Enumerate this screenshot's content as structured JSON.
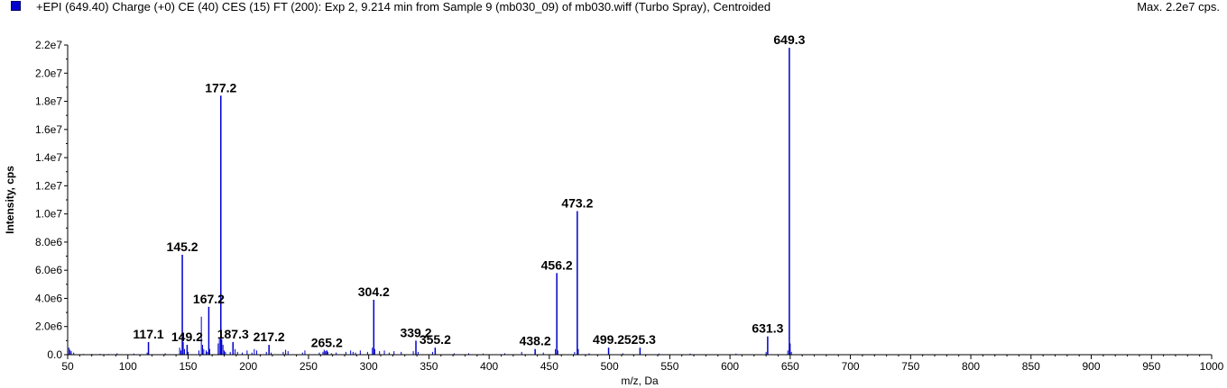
{
  "header": {
    "title": "+EPI (649.40) Charge (+0) CE (40) CES (15) FT (200): Exp 2, 9.214 min from Sample 9 (mb030_09) of mb030.wiff (Turbo Spray), Centroided",
    "max_intensity": "Max. 2.2e7 cps."
  },
  "colors": {
    "peak": "#0000cc",
    "swatch": "#0000cc",
    "axis": "#000000"
  },
  "chart_data": {
    "type": "bar",
    "xlabel": "m/z, Da",
    "ylabel": "Intensity, cps",
    "xlim": [
      50,
      1000
    ],
    "ylim": [
      0,
      22000000
    ],
    "x_ticks": [
      50,
      100,
      150,
      200,
      250,
      300,
      350,
      400,
      450,
      500,
      550,
      600,
      650,
      700,
      750,
      800,
      850,
      900,
      950,
      1000
    ],
    "y_ticks": [
      {
        "value": 0,
        "label": "0.0"
      },
      {
        "value": 2000000,
        "label": "2.0e6"
      },
      {
        "value": 4000000,
        "label": "4.0e6"
      },
      {
        "value": 6000000,
        "label": "6.0e6"
      },
      {
        "value": 8000000,
        "label": "8.0e6"
      },
      {
        "value": 10000000,
        "label": "1.0e7"
      },
      {
        "value": 12000000,
        "label": "1.2e7"
      },
      {
        "value": 14000000,
        "label": "1.4e7"
      },
      {
        "value": 16000000,
        "label": "1.6e7"
      },
      {
        "value": 18000000,
        "label": "1.8e7"
      },
      {
        "value": 20000000,
        "label": "2.0e7"
      },
      {
        "value": 22000000,
        "label": "2.2e7"
      }
    ],
    "labeled_peaks": [
      {
        "mz": 117.1,
        "intensity": 900000,
        "label": "117.1"
      },
      {
        "mz": 145.2,
        "intensity": 7100000,
        "label": "145.2"
      },
      {
        "mz": 149.2,
        "intensity": 700000,
        "label": "149.2"
      },
      {
        "mz": 167.2,
        "intensity": 3400000,
        "label": "167.2"
      },
      {
        "mz": 177.2,
        "intensity": 18400000,
        "label": "177.2"
      },
      {
        "mz": 187.3,
        "intensity": 900000,
        "label": "187.3"
      },
      {
        "mz": 217.2,
        "intensity": 700000,
        "label": "217.2"
      },
      {
        "mz": 265.2,
        "intensity": 300000,
        "label": "265.2"
      },
      {
        "mz": 304.2,
        "intensity": 3900000,
        "label": "304.2"
      },
      {
        "mz": 339.2,
        "intensity": 1000000,
        "label": "339.2"
      },
      {
        "mz": 355.2,
        "intensity": 500000,
        "label": "355.2"
      },
      {
        "mz": 438.2,
        "intensity": 400000,
        "label": "438.2"
      },
      {
        "mz": 456.2,
        "intensity": 5800000,
        "label": "456.2"
      },
      {
        "mz": 473.2,
        "intensity": 10200000,
        "label": "473.2"
      },
      {
        "mz": 499.2,
        "intensity": 500000,
        "label": "499.2"
      },
      {
        "mz": 525.3,
        "intensity": 500000,
        "label": "525.3"
      },
      {
        "mz": 631.3,
        "intensity": 1300000,
        "label": "631.3"
      },
      {
        "mz": 649.3,
        "intensity": 21800000,
        "label": "649.3"
      }
    ],
    "minor_peaks": [
      {
        "mz": 51,
        "intensity": 500000
      },
      {
        "mz": 52,
        "intensity": 350000
      },
      {
        "mz": 53,
        "intensity": 250000
      },
      {
        "mz": 55,
        "intensity": 150000
      },
      {
        "mz": 63,
        "intensity": 50000
      },
      {
        "mz": 70,
        "intensity": 50000
      },
      {
        "mz": 77,
        "intensity": 60000
      },
      {
        "mz": 84,
        "intensity": 50000
      },
      {
        "mz": 91,
        "intensity": 100000
      },
      {
        "mz": 105,
        "intensity": 80000
      },
      {
        "mz": 116,
        "intensity": 150000
      },
      {
        "mz": 131,
        "intensity": 100000
      },
      {
        "mz": 143,
        "intensity": 500000
      },
      {
        "mz": 144,
        "intensity": 300000
      },
      {
        "mz": 146,
        "intensity": 900000
      },
      {
        "mz": 147,
        "intensity": 400000
      },
      {
        "mz": 150,
        "intensity": 200000
      },
      {
        "mz": 159,
        "intensity": 300000
      },
      {
        "mz": 161,
        "intensity": 2700000
      },
      {
        "mz": 162,
        "intensity": 700000
      },
      {
        "mz": 163,
        "intensity": 400000
      },
      {
        "mz": 165,
        "intensity": 300000
      },
      {
        "mz": 166,
        "intensity": 200000
      },
      {
        "mz": 168,
        "intensity": 400000
      },
      {
        "mz": 175,
        "intensity": 800000
      },
      {
        "mz": 176,
        "intensity": 1200000
      },
      {
        "mz": 178,
        "intensity": 1100000
      },
      {
        "mz": 179,
        "intensity": 700000
      },
      {
        "mz": 180,
        "intensity": 300000
      },
      {
        "mz": 181,
        "intensity": 200000
      },
      {
        "mz": 185,
        "intensity": 200000
      },
      {
        "mz": 189,
        "intensity": 400000
      },
      {
        "mz": 191,
        "intensity": 200000
      },
      {
        "mz": 195,
        "intensity": 150000
      },
      {
        "mz": 199,
        "intensity": 300000
      },
      {
        "mz": 203,
        "intensity": 150000
      },
      {
        "mz": 205,
        "intensity": 400000
      },
      {
        "mz": 207,
        "intensity": 300000
      },
      {
        "mz": 215,
        "intensity": 200000
      },
      {
        "mz": 219,
        "intensity": 150000
      },
      {
        "mz": 229,
        "intensity": 200000
      },
      {
        "mz": 231,
        "intensity": 350000
      },
      {
        "mz": 233,
        "intensity": 250000
      },
      {
        "mz": 245,
        "intensity": 150000
      },
      {
        "mz": 247,
        "intensity": 300000
      },
      {
        "mz": 259,
        "intensity": 150000
      },
      {
        "mz": 262,
        "intensity": 200000
      },
      {
        "mz": 263,
        "intensity": 350000
      },
      {
        "mz": 264,
        "intensity": 250000
      },
      {
        "mz": 266,
        "intensity": 200000
      },
      {
        "mz": 269,
        "intensity": 100000
      },
      {
        "mz": 273,
        "intensity": 150000
      },
      {
        "mz": 281,
        "intensity": 200000
      },
      {
        "mz": 285,
        "intensity": 300000
      },
      {
        "mz": 287,
        "intensity": 200000
      },
      {
        "mz": 289,
        "intensity": 150000
      },
      {
        "mz": 293,
        "intensity": 300000
      },
      {
        "mz": 299,
        "intensity": 200000
      },
      {
        "mz": 303,
        "intensity": 500000
      },
      {
        "mz": 305,
        "intensity": 400000
      },
      {
        "mz": 309,
        "intensity": 250000
      },
      {
        "mz": 313,
        "intensity": 300000
      },
      {
        "mz": 317,
        "intensity": 150000
      },
      {
        "mz": 321,
        "intensity": 250000
      },
      {
        "mz": 327,
        "intensity": 200000
      },
      {
        "mz": 337,
        "intensity": 250000
      },
      {
        "mz": 341,
        "intensity": 200000
      },
      {
        "mz": 353,
        "intensity": 200000
      },
      {
        "mz": 371,
        "intensity": 100000
      },
      {
        "mz": 383,
        "intensity": 100000
      },
      {
        "mz": 395,
        "intensity": 80000
      },
      {
        "mz": 413,
        "intensity": 100000
      },
      {
        "mz": 427,
        "intensity": 200000
      },
      {
        "mz": 445,
        "intensity": 150000
      },
      {
        "mz": 455,
        "intensity": 400000
      },
      {
        "mz": 457,
        "intensity": 300000
      },
      {
        "mz": 471,
        "intensity": 200000
      },
      {
        "mz": 474,
        "intensity": 400000
      },
      {
        "mz": 483,
        "intensity": 100000
      },
      {
        "mz": 511,
        "intensity": 100000
      },
      {
        "mz": 541,
        "intensity": 80000
      },
      {
        "mz": 567,
        "intensity": 80000
      },
      {
        "mz": 605,
        "intensity": 80000
      },
      {
        "mz": 630,
        "intensity": 200000
      },
      {
        "mz": 648,
        "intensity": 300000
      },
      {
        "mz": 650,
        "intensity": 800000
      },
      {
        "mz": 651,
        "intensity": 200000
      }
    ]
  }
}
